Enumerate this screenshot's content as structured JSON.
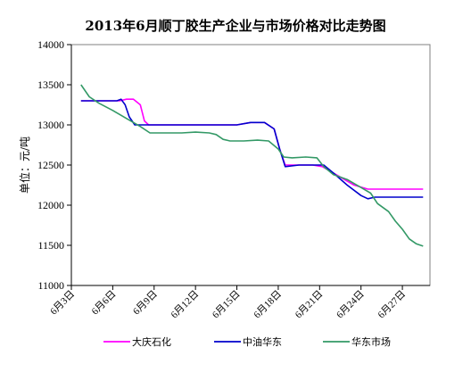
{
  "chart_data": {
    "type": "line",
    "title": "2013年6月顺丁胶生产企业与市场价格对比走势图",
    "ylabel": "单位：元/吨",
    "xlabel": "",
    "ylim": [
      11000,
      14000
    ],
    "yticks": [
      11000,
      11500,
      12000,
      12500,
      13000,
      13500,
      14000
    ],
    "x_tick_labels": [
      "6月3日",
      "6月6日",
      "6月9日",
      "6月12日",
      "6月15日",
      "6月18日",
      "6月21日",
      "6月24日",
      "6月27日"
    ],
    "x_tick_days": [
      3,
      6,
      9,
      12,
      15,
      18,
      21,
      24,
      27
    ],
    "xlim": [
      3,
      29
    ],
    "grid": false,
    "legend_position": "bottom",
    "series": [
      {
        "name": "大庆石化",
        "color": "#ff00ff",
        "points": [
          [
            3.7,
            13300
          ],
          [
            4.5,
            13300
          ],
          [
            5.5,
            13300
          ],
          [
            6.5,
            13300
          ],
          [
            7.0,
            13320
          ],
          [
            7.5,
            13320
          ],
          [
            8.0,
            13250
          ],
          [
            8.3,
            13050
          ],
          [
            8.6,
            13000
          ],
          [
            9.5,
            13000
          ],
          [
            11,
            13000
          ],
          [
            13,
            13000
          ],
          [
            15,
            13000
          ],
          [
            16,
            13030
          ],
          [
            17,
            13030
          ],
          [
            17.7,
            12950
          ],
          [
            18.1,
            12700
          ],
          [
            18.5,
            12500
          ],
          [
            19.5,
            12500
          ],
          [
            20.5,
            12500
          ],
          [
            21.2,
            12480
          ],
          [
            22.5,
            12350
          ],
          [
            23.5,
            12250
          ],
          [
            24.5,
            12200
          ],
          [
            25.5,
            12200
          ],
          [
            26.5,
            12200
          ],
          [
            28.5,
            12200
          ]
        ]
      },
      {
        "name": "中油华东",
        "color": "#0000cc",
        "points": [
          [
            3.7,
            13300
          ],
          [
            4.5,
            13300
          ],
          [
            5.5,
            13300
          ],
          [
            6.3,
            13300
          ],
          [
            6.6,
            13320
          ],
          [
            6.9,
            13250
          ],
          [
            7.2,
            13100
          ],
          [
            7.6,
            13000
          ],
          [
            9.5,
            13000
          ],
          [
            11,
            13000
          ],
          [
            13,
            13000
          ],
          [
            15,
            13000
          ],
          [
            16,
            13030
          ],
          [
            17,
            13030
          ],
          [
            17.7,
            12950
          ],
          [
            18.1,
            12700
          ],
          [
            18.5,
            12480
          ],
          [
            19.5,
            12500
          ],
          [
            20.5,
            12500
          ],
          [
            21.3,
            12500
          ],
          [
            22.0,
            12400
          ],
          [
            23.0,
            12250
          ],
          [
            24.0,
            12120
          ],
          [
            24.5,
            12080
          ],
          [
            25.0,
            12100
          ],
          [
            26.5,
            12100
          ],
          [
            28.5,
            12100
          ]
        ]
      },
      {
        "name": "华东市场",
        "color": "#339966",
        "points": [
          [
            3.7,
            13500
          ],
          [
            4.3,
            13350
          ],
          [
            5.0,
            13270
          ],
          [
            6.0,
            13180
          ],
          [
            7.0,
            13080
          ],
          [
            8.0,
            12980
          ],
          [
            8.7,
            12900
          ],
          [
            9.5,
            12900
          ],
          [
            11,
            12900
          ],
          [
            12,
            12910
          ],
          [
            13,
            12900
          ],
          [
            13.5,
            12880
          ],
          [
            14,
            12820
          ],
          [
            14.5,
            12800
          ],
          [
            15.5,
            12800
          ],
          [
            16.5,
            12810
          ],
          [
            17.3,
            12800
          ],
          [
            18.0,
            12700
          ],
          [
            18.4,
            12600
          ],
          [
            19.0,
            12590
          ],
          [
            20.0,
            12600
          ],
          [
            20.8,
            12590
          ],
          [
            21.3,
            12480
          ],
          [
            22.0,
            12380
          ],
          [
            23.0,
            12320
          ],
          [
            24.0,
            12220
          ],
          [
            24.7,
            12150
          ],
          [
            25.2,
            12020
          ],
          [
            26.0,
            11920
          ],
          [
            26.5,
            11800
          ],
          [
            27.0,
            11700
          ],
          [
            27.5,
            11580
          ],
          [
            28.0,
            11520
          ],
          [
            28.5,
            11490
          ]
        ]
      }
    ]
  }
}
